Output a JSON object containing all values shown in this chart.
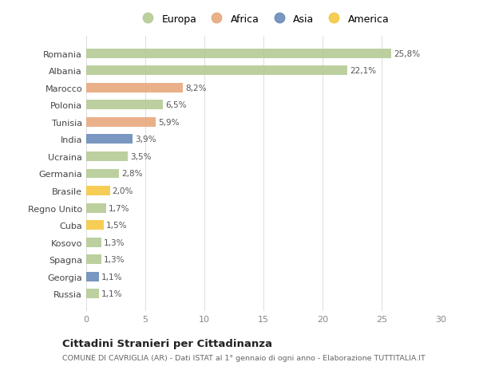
{
  "countries": [
    "Romania",
    "Albania",
    "Marocco",
    "Polonia",
    "Tunisia",
    "India",
    "Ucraina",
    "Germania",
    "Brasile",
    "Regno Unito",
    "Cuba",
    "Kosovo",
    "Spagna",
    "Georgia",
    "Russia"
  ],
  "values": [
    25.8,
    22.1,
    8.2,
    6.5,
    5.9,
    3.9,
    3.5,
    2.8,
    2.0,
    1.7,
    1.5,
    1.3,
    1.3,
    1.1,
    1.1
  ],
  "labels": [
    "25,8%",
    "22,1%",
    "8,2%",
    "6,5%",
    "5,9%",
    "3,9%",
    "3,5%",
    "2,8%",
    "2,0%",
    "1,7%",
    "1,5%",
    "1,3%",
    "1,3%",
    "1,1%",
    "1,1%"
  ],
  "continents": [
    "Europa",
    "Europa",
    "Africa",
    "Europa",
    "Africa",
    "Asia",
    "Europa",
    "Europa",
    "America",
    "Europa",
    "America",
    "Europa",
    "Europa",
    "Asia",
    "Europa"
  ],
  "colors": {
    "Europa": "#b5cb95",
    "Africa": "#e8a87c",
    "Asia": "#6b8cba",
    "America": "#f5c842"
  },
  "background_color": "#ffffff",
  "title": "Cittadini Stranieri per Cittadinanza",
  "subtitle": "COMUNE DI CAVRIGLIA (AR) - Dati ISTAT al 1° gennaio di ogni anno - Elaborazione TUTTITALIA.IT",
  "xlim": [
    0,
    30
  ],
  "xticks": [
    0,
    5,
    10,
    15,
    20,
    25,
    30
  ],
  "legend_entries": [
    "Europa",
    "Africa",
    "Asia",
    "America"
  ],
  "legend_colors": [
    "#b5cb95",
    "#e8a87c",
    "#6b8cba",
    "#f5c842"
  ]
}
